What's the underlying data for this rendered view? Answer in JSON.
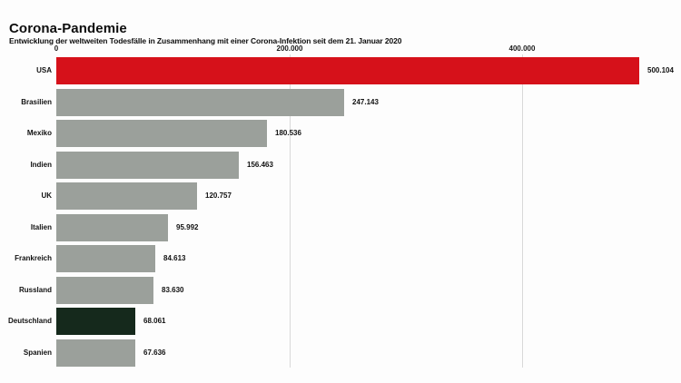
{
  "header": {
    "title": "Corona-Pandemie",
    "subtitle": "Entwicklung der weltweiten Todesfälle in Zusammenhang mit einer Corona-Infektion seit dem 21. Januar 2020"
  },
  "chart_data": {
    "type": "bar",
    "orientation": "horizontal",
    "title": "Corona-Pandemie",
    "subtitle": "Entwicklung der weltweiten Todesfälle in Zusammenhang mit einer Corona-Infektion seit dem 21. Januar 2020",
    "categories": [
      "USA",
      "Brasilien",
      "Mexiko",
      "Indien",
      "UK",
      "Italien",
      "Frankreich",
      "Russland",
      "Deutschland",
      "Spanien"
    ],
    "values": [
      500104,
      247143,
      180536,
      156463,
      120757,
      95992,
      84613,
      83630,
      68061,
      67636
    ],
    "value_labels": [
      "500.104",
      "247.143",
      "180.536",
      "156.463",
      "120.757",
      "95.992",
      "84.613",
      "83.630",
      "68.061",
      "67.636"
    ],
    "bar_colors": [
      "#d6111a",
      "#9ba09b",
      "#9ba09b",
      "#9ba09b",
      "#9ba09b",
      "#9ba09b",
      "#9ba09b",
      "#9ba09b",
      "#15291c",
      "#9ba09b"
    ],
    "x_ticks": [
      {
        "value": 0,
        "label": "0"
      },
      {
        "value": 200000,
        "label": "200.000"
      },
      {
        "value": 400000,
        "label": "400.000"
      }
    ],
    "xlim": [
      0,
      530000
    ],
    "ylabel": "",
    "xlabel": "",
    "grid": "vertical-major-ticks-only",
    "legend": "none",
    "colors": {
      "highlight_top": "#d6111a",
      "default_bar": "#9ba09b",
      "highlight_deutschland": "#15291c",
      "gridline": "#d9d9d9",
      "text": "#111111",
      "background": "#fdfdfd"
    }
  }
}
